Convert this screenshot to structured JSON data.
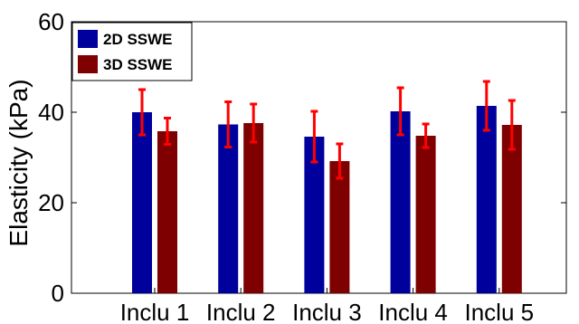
{
  "chart_data": {
    "type": "bar",
    "title": "",
    "xlabel": "",
    "ylabel": "Elasticity (kPa)",
    "ylim": [
      0,
      60
    ],
    "yticks": [
      0,
      20,
      40,
      60
    ],
    "categories": [
      "Inclu 1",
      "Inclu 2",
      "Inclu 3",
      "Inclu 4",
      "Inclu 5"
    ],
    "series": [
      {
        "name": "2D SSWE",
        "color": "#00009c",
        "values": [
          40.0,
          37.3,
          34.6,
          40.2,
          41.4
        ],
        "error": [
          5.0,
          5.0,
          5.6,
          5.2,
          5.4
        ]
      },
      {
        "name": "3D SSWE",
        "color": "#7f0000",
        "values": [
          35.8,
          37.6,
          29.2,
          34.8,
          37.2
        ],
        "error": [
          2.9,
          4.2,
          3.8,
          2.6,
          5.4
        ]
      }
    ],
    "error_bar_color": "#ff0000",
    "legend_position": "top-left",
    "grid": false
  }
}
